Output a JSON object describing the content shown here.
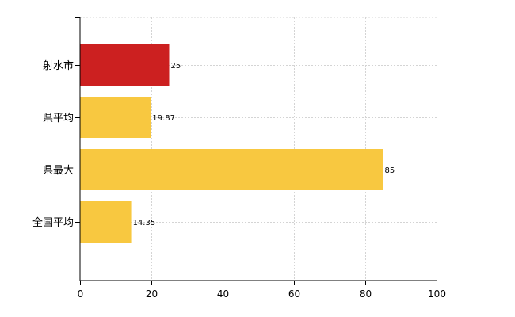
{
  "chart_data": {
    "type": "bar",
    "orientation": "horizontal",
    "categories": [
      "射水市",
      "県平均",
      "県最大",
      "全国平均"
    ],
    "values": [
      25,
      19.87,
      85,
      14.35
    ],
    "value_labels": [
      "25",
      "19.87",
      "85",
      "14.35"
    ],
    "bar_colors": [
      "#cc2020",
      "#f8c840",
      "#f8c840",
      "#f8c840"
    ],
    "x_ticks": [
      "0",
      "20",
      "40",
      "60",
      "80",
      "100"
    ],
    "xlim": [
      0,
      100
    ],
    "grid": true
  }
}
